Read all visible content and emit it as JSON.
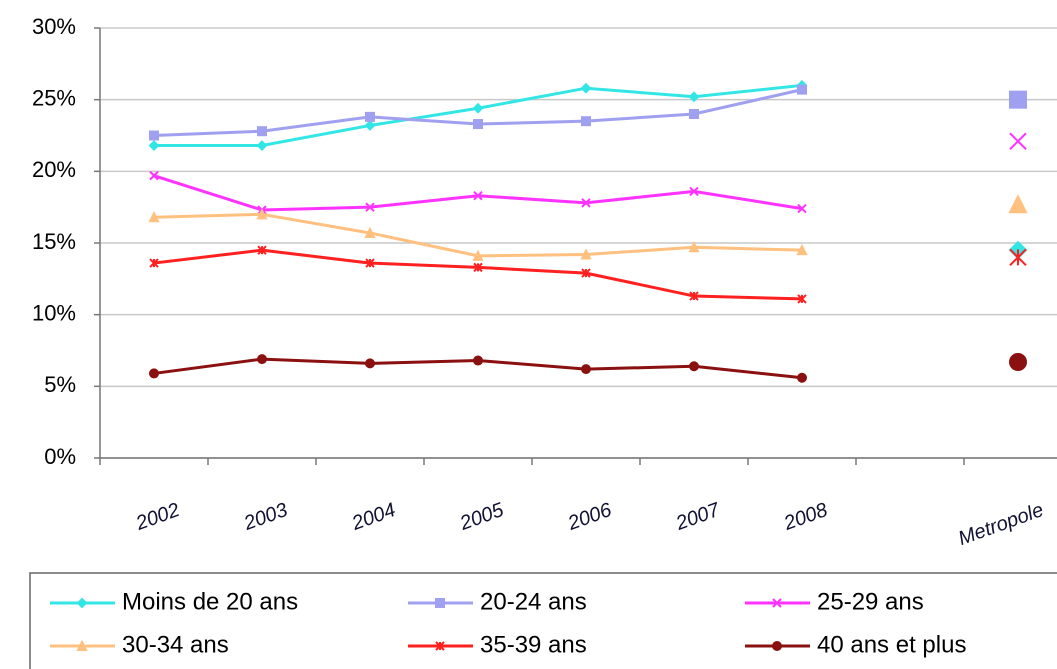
{
  "chart_data": {
    "type": "line",
    "categories": [
      "2002",
      "2003",
      "2004",
      "2005",
      "2006",
      "2007",
      "2008",
      null,
      "Metropole"
    ],
    "series": [
      {
        "name": "Moins de 20 ans",
        "color": "#33e6e6",
        "marker": "diamond",
        "values": [
          21.8,
          21.8,
          23.2,
          24.4,
          25.8,
          25.2,
          26.0,
          null,
          14.5
        ]
      },
      {
        "name": "20-24 ans",
        "color": "#a0a0f0",
        "marker": "square",
        "values": [
          22.5,
          22.8,
          23.8,
          23.3,
          23.5,
          24.0,
          25.7,
          null,
          25.0
        ]
      },
      {
        "name": "25-29 ans",
        "color": "#ff33ff",
        "marker": "x",
        "values": [
          19.7,
          17.3,
          17.5,
          18.3,
          17.8,
          18.6,
          17.4,
          null,
          22.1
        ]
      },
      {
        "name": "30-34 ans",
        "color": "#ffc080",
        "marker": "triangle",
        "values": [
          16.8,
          17.0,
          15.7,
          14.1,
          14.2,
          14.7,
          14.5,
          null,
          17.7
        ]
      },
      {
        "name": "35-39 ans",
        "color": "#ff2020",
        "marker": "star",
        "values": [
          13.6,
          14.5,
          13.6,
          13.3,
          12.9,
          11.3,
          11.1,
          null,
          14.0
        ]
      },
      {
        "name": "40 ans et plus",
        "color": "#8b1010",
        "marker": "circle",
        "values": [
          5.9,
          6.9,
          6.6,
          6.8,
          6.2,
          6.4,
          5.6,
          null,
          6.7
        ]
      }
    ],
    "ylim": [
      0,
      30
    ],
    "yticks": [
      {
        "value": 0,
        "label": "0%"
      },
      {
        "value": 5,
        "label": "5%"
      },
      {
        "value": 10,
        "label": "10%"
      },
      {
        "value": 15,
        "label": "15%"
      },
      {
        "value": 20,
        "label": "20%"
      },
      {
        "value": 25,
        "label": "25%"
      },
      {
        "value": 30,
        "label": "30%"
      }
    ],
    "grid": true,
    "legend": "bottom"
  }
}
